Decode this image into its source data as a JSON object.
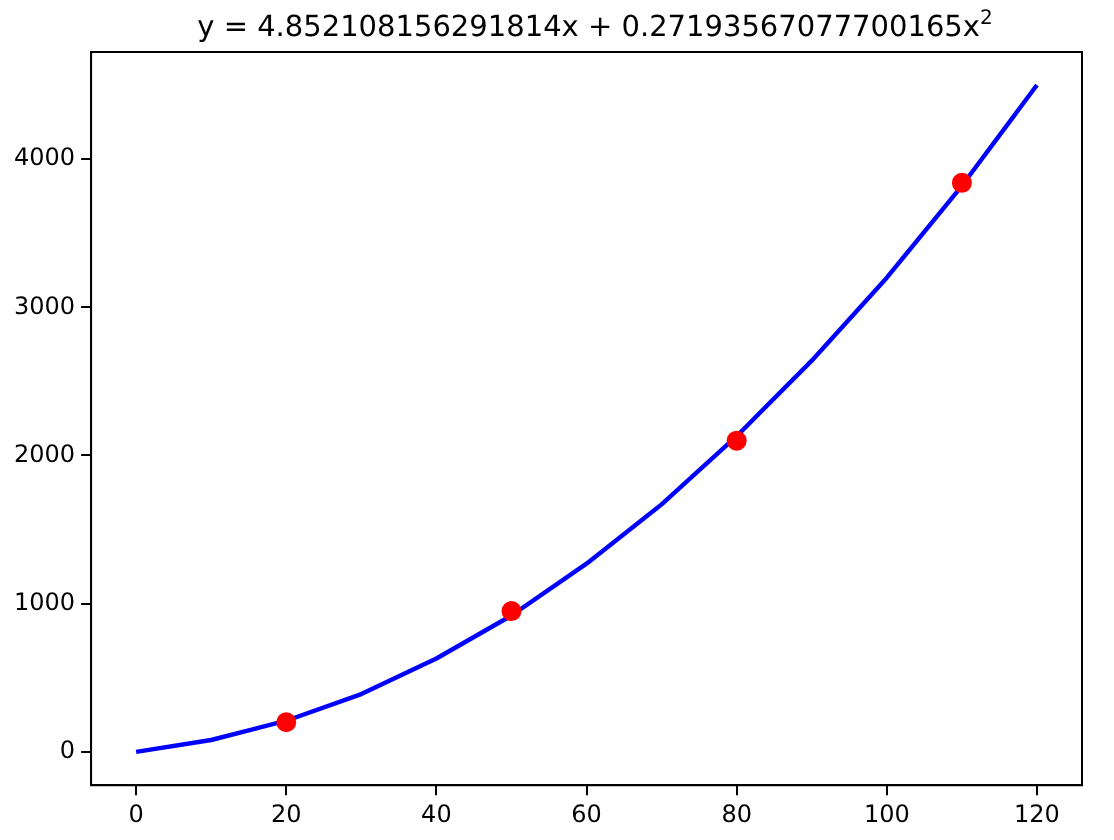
{
  "chart_data": {
    "type": "line",
    "title": "y =  4.852108156291814x + 0.27193567077700165x$^{2}$",
    "series": [
      {
        "color": "#0000ff",
        "marker": "none",
        "x": [
          0,
          10,
          20,
          30,
          40,
          50,
          60,
          70,
          80,
          90,
          100,
          110,
          120
        ],
        "values": [
          0,
          80,
          210,
          390,
          630,
          920,
          1270,
          1670,
          2130,
          2640,
          3200,
          3820,
          4500
        ]
      },
      {
        "type": "scatter",
        "color": "#ff0000",
        "marker": "circle",
        "x": [
          20,
          50,
          80,
          110
        ],
        "values": [
          200,
          950,
          2100,
          3840
        ]
      }
    ],
    "xlim": [
      -6,
      126
    ],
    "xticks": [
      0,
      20,
      40,
      60,
      80,
      100,
      120
    ],
    "ylim": [
      -225,
      4723
    ],
    "yticks": [
      0,
      1000,
      2000,
      3000,
      4000
    ],
    "grid": false,
    "legend": false
  }
}
